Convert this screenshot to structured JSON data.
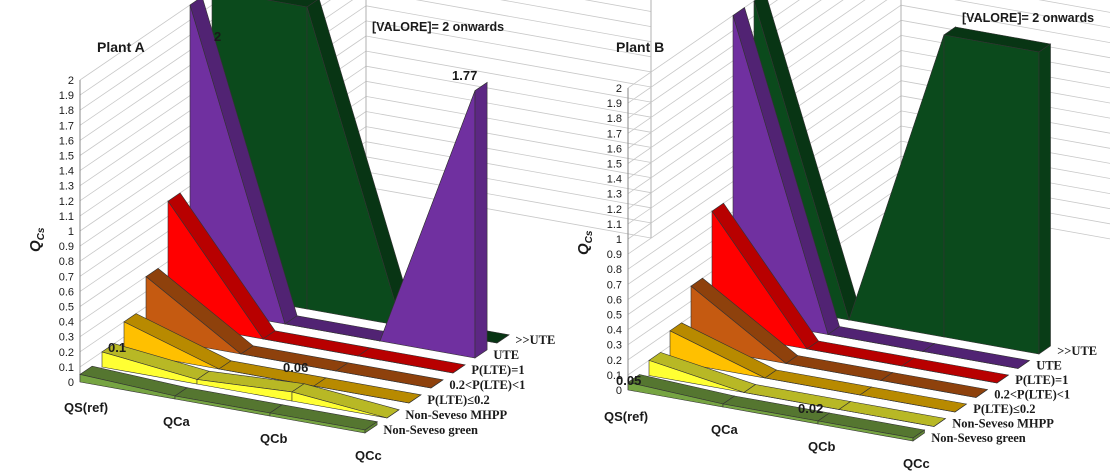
{
  "chart_data": [
    {
      "type": "area",
      "title": "Plant A",
      "annotation": "[VALORE]= 2 onwards",
      "ylabel_main": "Q",
      "ylabel_sub": "Cs",
      "ylim": [
        0,
        2
      ],
      "yticks": [
        "0",
        "0.1",
        "0.2",
        "0.3",
        "0.4",
        "0.5",
        "0.6",
        "0.7",
        "0.8",
        "0.9",
        "1",
        "1.1",
        "1.2",
        "1.3",
        "1.4",
        "1.5",
        "1.6",
        "1.7",
        "1.8",
        "1.9",
        "2"
      ],
      "categories": [
        "QS(ref)",
        "QCa",
        "QCb",
        "QCc"
      ],
      "series": [
        {
          "name": "Non-Seveso green",
          "color": "#76a442",
          "values": [
            0.05,
            0.02,
            0.02,
            0.02
          ]
        },
        {
          "name": "Non-Seveso MHPP",
          "color": "#ffff33",
          "values": [
            0.1,
            0.03,
            0.06,
            0.0
          ]
        },
        {
          "name": "P(LTE)≤0.2",
          "color": "#ffc000",
          "values": [
            0.2,
            0.0,
            0.0,
            0.0
          ]
        },
        {
          "name": "0.2<P(LTE)<1",
          "color": "#c55a11",
          "values": [
            0.4,
            0.0,
            0.0,
            0.0
          ]
        },
        {
          "name": "P(LTE)=1",
          "color": "#ff0000",
          "values": [
            0.8,
            0.0,
            0.0,
            0.0
          ]
        },
        {
          "name": "UTE",
          "color": "#7030a0",
          "values": [
            2,
            0.0,
            0.0,
            1.77
          ]
        },
        {
          "name": ">>UTE",
          "color": "#0b4a1c",
          "values": [
            2,
            2,
            0.0,
            0.0
          ]
        }
      ],
      "data_labels": [
        "2",
        "1.77",
        "0.1",
        "0.06"
      ]
    },
    {
      "type": "area",
      "title": "Plant B",
      "annotation": "[VALORE]= 2 onwards",
      "ylabel_main": "Q",
      "ylabel_sub": "Cs",
      "ylim": [
        0,
        2
      ],
      "yticks": [
        "0",
        "0.1",
        "0.2",
        "0.3",
        "0.4",
        "0.5",
        "0.6",
        "0.7",
        "0.8",
        "0.9",
        "1",
        "1.1",
        "1.2",
        "1.3",
        "1.4",
        "1.5",
        "1.6",
        "1.7",
        "1.8",
        "1.9",
        "2"
      ],
      "categories": [
        "QS(ref)",
        "QCa",
        "QCb",
        "QCc"
      ],
      "series": [
        {
          "name": "Non-Seveso green",
          "color": "#76a442",
          "values": [
            0.05,
            0.02,
            0.02,
            0.02
          ]
        },
        {
          "name": "Non-Seveso MHPP",
          "color": "#ffff33",
          "values": [
            0.1,
            0.0,
            0.0,
            0.0
          ]
        },
        {
          "name": "P(LTE)≤0.2",
          "color": "#ffc000",
          "values": [
            0.2,
            0.0,
            0.0,
            0.0
          ]
        },
        {
          "name": "0.2<P(LTE)<1",
          "color": "#c55a11",
          "values": [
            0.4,
            0.0,
            0.0,
            0.0
          ]
        },
        {
          "name": "P(LTE)=1",
          "color": "#ff0000",
          "values": [
            0.8,
            0.0,
            0.0,
            0.0
          ]
        },
        {
          "name": "UTE",
          "color": "#7030a0",
          "values": [
            2,
            0.0,
            0.0,
            0.0
          ]
        },
        {
          "name": ">>UTE",
          "color": "#0b4a1c",
          "values": [
            2,
            0.0,
            2,
            2
          ]
        }
      ],
      "data_labels": [
        "0.05",
        "0.02"
      ]
    }
  ]
}
